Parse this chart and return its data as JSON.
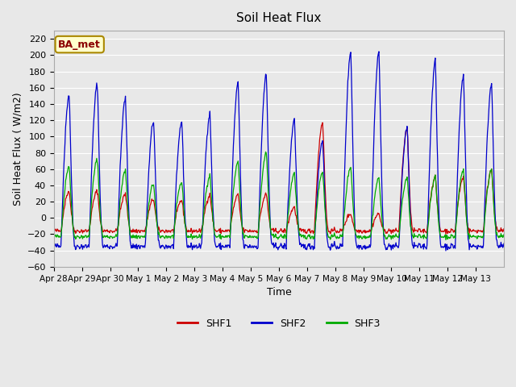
{
  "title": "Soil Heat Flux",
  "xlabel": "Time",
  "ylabel": "Soil Heat Flux ( W/m2)",
  "ylim": [
    -60,
    230
  ],
  "yticks": [
    -60,
    -40,
    -20,
    0,
    20,
    40,
    60,
    80,
    100,
    120,
    140,
    160,
    180,
    200,
    220
  ],
  "x_tick_labels": [
    "Apr 28",
    "Apr 29",
    "Apr 30",
    "May 1",
    "May 2",
    "May 3",
    "May 4",
    "May 5",
    "May 6",
    "May 7",
    "May 8",
    "May 9",
    "May 10",
    "May 11",
    "May 12",
    "May 13"
  ],
  "legend_labels": [
    "SHF1",
    "SHF2",
    "SHF3"
  ],
  "line_colors": [
    "#cc0000",
    "#0000cc",
    "#00aa00"
  ],
  "annotation_text": "BA_met",
  "annotation_bg": "#ffffcc",
  "annotation_border": "#aa8800",
  "bg_color": "#e8e8e8",
  "shf2_peaks": [
    152,
    165,
    147,
    119,
    119,
    128,
    165,
    176,
    121,
    96,
    205,
    204,
    111,
    193,
    175,
    165
  ],
  "shf1_peaks": [
    33,
    33,
    29,
    23,
    22,
    28,
    28,
    29,
    13,
    118,
    5,
    5,
    110,
    50,
    50,
    60
  ],
  "shf3_peaks": [
    64,
    72,
    58,
    42,
    44,
    52,
    68,
    80,
    55,
    57,
    63,
    49,
    49,
    50,
    59,
    60
  ],
  "n_points_per_day": 48
}
